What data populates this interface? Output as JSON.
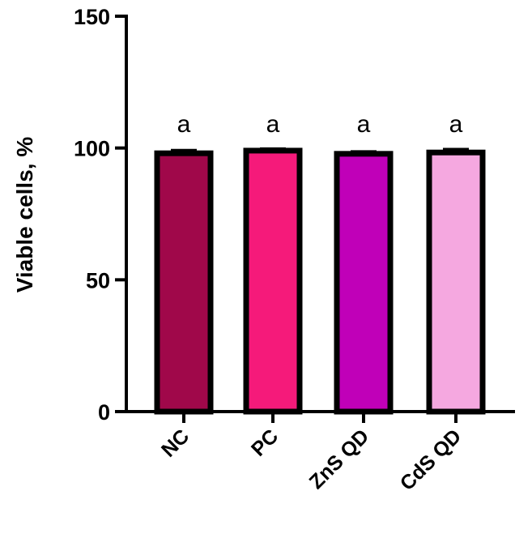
{
  "chart_data": {
    "type": "bar",
    "title": "",
    "xlabel": "",
    "ylabel": "Viable cells, %",
    "ylim": [
      0,
      150
    ],
    "yticks": [
      0,
      50,
      100,
      150
    ],
    "grid": false,
    "categories": [
      "NC",
      "PC",
      "ZnS QD",
      "CdS QD"
    ],
    "values": [
      98,
      99,
      97.8,
      98.3
    ],
    "errors": [
      1.2,
      0.8,
      0.9,
      1.3
    ],
    "annotations": [
      "a",
      "a",
      "a",
      "a"
    ],
    "colors": [
      "#a0084a",
      "#f51a7a",
      "#c000b8",
      "#f5a8e0"
    ],
    "edge_color": "#000000"
  }
}
